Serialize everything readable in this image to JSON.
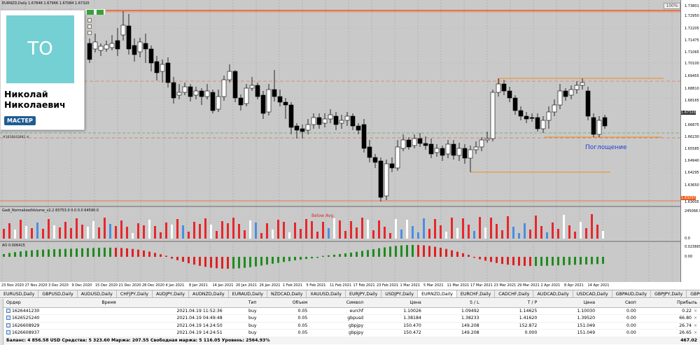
{
  "chart": {
    "title": "EURNZD,Daily  1.67848 1.67966 1.67084 1.67320",
    "zoom": "100%",
    "order_tag": "#1626642881 sl",
    "below_avg": "Below Avg.",
    "annotation": "Поглощение",
    "volume_label": "Gadi_NormalizedVolume_v2.2 83753.0 0.0 0.0 64590.0",
    "ao_label": "AO 0.006415",
    "price_axis": [
      "1.73801",
      "1.72950",
      "1.72205",
      "1.71475",
      "1.71065",
      "1.70100",
      "1.69455",
      "1.68810",
      "1.68165",
      "1.67320",
      "1.66875",
      "1.66230",
      "1.65585",
      "1.64940",
      "1.64295",
      "1.63650",
      "1.63297",
      "1.63005"
    ],
    "vol_axis": [
      "245066.9",
      "0.0"
    ],
    "ao_axis": [
      "0.023665",
      "0.00"
    ],
    "dates": [
      "23 Nov 2020",
      "27 Nov 2020",
      "3 Dec 2020",
      "9 Dec 2020",
      "15 Dec 2020",
      "21 Dec 2020",
      "28 Dec 2020",
      "4 Jan 2021",
      "8 Jan 2021",
      "14 Jan 2021",
      "20 Jan 2021",
      "26 Jan 2021",
      "1 Feb 2021",
      "5 Feb 2021",
      "11 Feb 2021",
      "17 Feb 2021",
      "23 Feb 2021",
      "1 Mar 2021",
      "5 Mar 2021",
      "11 Mar 2021",
      "17 Mar 2021",
      "23 Mar 2021",
      "29 Mar 2021",
      "2 Apr 2021",
      "8 Apr 2021",
      "14 Apr 2021"
    ]
  },
  "profile": {
    "initials": "TO",
    "name": "Николай Николаевич",
    "badge": "МАСТЕР"
  },
  "tabs": [
    "EURUSD,Daily",
    "GBPUSD,Daily",
    "AUDUSD,Daily",
    "CHFJPY,Daily",
    "AUDJPY,Daily",
    "AUDNZD,Daily",
    "EURAUD,Daily",
    "NZDCAD,Daily",
    "XAUUSD,Daily",
    "EURJPY,Daily",
    "USDJPY,Daily",
    "EURNZD,Daily",
    "EURCHF,Daily",
    "CADCHF,Daily",
    "AUDCAD,Daily",
    "USDCAD,Daily",
    "GBPAUD,Daily",
    "GBPJPY,Daily",
    "GBPCHF,Daily",
    "GBPNZD,Daily",
    "GBPCA"
  ],
  "active_tab": 11,
  "terminal": {
    "headers": [
      "Ордер",
      "Время",
      "Тип",
      "Объем",
      "Символ",
      "Цена",
      "S / L",
      "T / P",
      "Цена",
      "Своп",
      "Прибыль"
    ],
    "rows": [
      [
        "1626441230",
        "2021.04.19 11:52:36",
        "buy",
        "0.05",
        "eurchf",
        "1.10026",
        "1.09492",
        "1.14625",
        "1.10030",
        "0.00",
        "0.22"
      ],
      [
        "1626525240",
        "2021.04.19 04:49:48",
        "buy",
        "0.05",
        "gbpusd",
        "1.38184",
        "1.38233",
        "1.41620",
        "1.39520",
        "0.00",
        "66.80"
      ],
      [
        "1626608929",
        "2021.04.19 14:24:50",
        "buy",
        "0.05",
        "gbpjpy",
        "150.470",
        "149.208",
        "152.872",
        "151.049",
        "0.00",
        "26.74"
      ],
      [
        "1626608937",
        "2021.04.19 14:24:51",
        "buy",
        "0.05",
        "gbpjpy",
        "150.472",
        "149.208",
        "0.000",
        "151.049",
        "0.00",
        "26.65"
      ]
    ],
    "balance": "Баланс: 4 856.58 USD  Средства: 5 323.60  Маржа: 207.55  Свободная маржа: 5 116.05  Уровень: 2564.93%",
    "total": "467.02"
  },
  "colors": {
    "bull": "#ffffff",
    "bear": "#000000",
    "vol_red": "#e8262b",
    "vol_blue": "#4a8ee0",
    "ao_green": "#1e8c1e",
    "ao_red": "#e02020",
    "res_line": "#f08a18"
  }
}
